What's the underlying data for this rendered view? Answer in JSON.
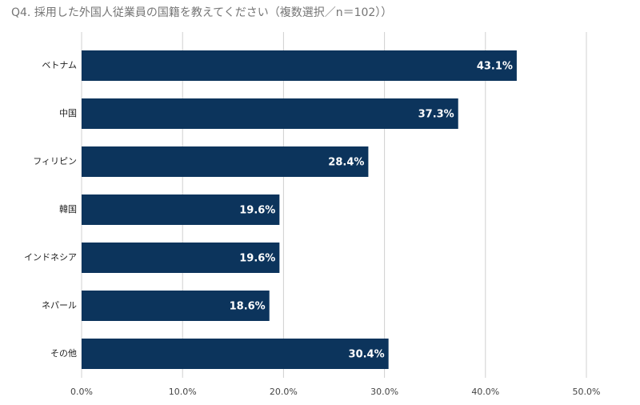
{
  "chart_data": {
    "type": "bar",
    "orientation": "horizontal",
    "title": "Q4.  採用した外国人従業員の国籍を教えてください（複数選択／n＝102））",
    "categories": [
      "ベトナム",
      "中国",
      "フィリピン",
      "韓国",
      "インドネシア",
      "ネパール",
      "その他"
    ],
    "values": [
      43.1,
      37.3,
      28.4,
      19.6,
      19.6,
      18.6,
      30.4
    ],
    "value_labels": [
      "43.1%",
      "37.3%",
      "28.4%",
      "19.6%",
      "19.6%",
      "18.6%",
      "30.4%"
    ],
    "color": "#0c345c",
    "xlim": [
      0,
      50
    ],
    "xticks": [
      {
        "value": 0,
        "label": "0.0%"
      },
      {
        "value": 10,
        "label": "10.0%"
      },
      {
        "value": 20,
        "label": "20.0%"
      },
      {
        "value": 30,
        "label": "30.0%"
      },
      {
        "value": 40,
        "label": "40.0%"
      },
      {
        "value": 50,
        "label": "50.0%"
      }
    ],
    "grid": true
  }
}
